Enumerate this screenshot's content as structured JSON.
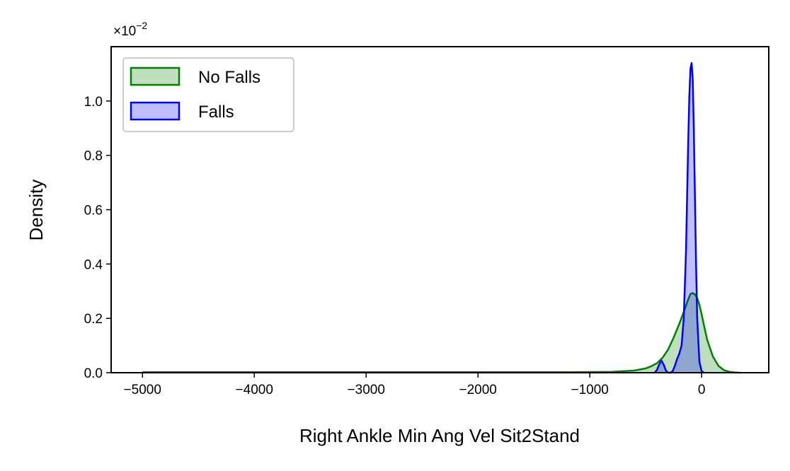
{
  "chart_data": {
    "type": "area",
    "title": "",
    "xlabel": "Right Ankle Min Ang Vel Sit2Stand",
    "ylabel": "Density",
    "y_offset_text": "×10",
    "y_offset_exponent": "−2",
    "xlim": [
      -5280,
      600
    ],
    "ylim": [
      0,
      1.2
    ],
    "xticks": [
      -5000,
      -4000,
      -3000,
      -2000,
      -1000,
      0
    ],
    "xtick_labels": [
      "−5000",
      "−4000",
      "−3000",
      "−2000",
      "−1000",
      "0"
    ],
    "yticks": [
      0.0,
      0.2,
      0.4,
      0.6,
      0.8,
      1.0
    ],
    "ytick_labels": [
      "0.0",
      "0.2",
      "0.4",
      "0.6",
      "0.8",
      "1.0"
    ],
    "legend_position": "upper-left",
    "grid": false,
    "series": [
      {
        "name": "No Falls",
        "line_color": "#008000",
        "fill_color": "#008000",
        "x": [
          -5000,
          -4000,
          -3000,
          -2000,
          -1200,
          -800,
          -600,
          -500,
          -450,
          -400,
          -350,
          -300,
          -250,
          -200,
          -150,
          -120,
          -100,
          -80,
          -60,
          -40,
          -20,
          0,
          20,
          50,
          100,
          150,
          200,
          250,
          300,
          340
        ],
        "y": [
          0.002,
          0.002,
          0.002,
          0.002,
          0.002,
          0.003,
          0.008,
          0.016,
          0.024,
          0.035,
          0.055,
          0.085,
          0.13,
          0.18,
          0.235,
          0.27,
          0.29,
          0.293,
          0.288,
          0.275,
          0.25,
          0.215,
          0.175,
          0.12,
          0.06,
          0.025,
          0.009,
          0.003,
          0.001,
          0.0
        ]
      },
      {
        "name": "Falls",
        "line_color": "#0000ff",
        "fill_color": "#0000ff",
        "x": [
          -420,
          -400,
          -380,
          -360,
          -340,
          -320,
          -300,
          -280,
          -260,
          -240,
          -220,
          -200,
          -180,
          -160,
          -140,
          -120,
          -110,
          -100,
          -90,
          -80,
          -70,
          -60,
          -50,
          -40,
          -20,
          0,
          20
        ],
        "y": [
          0.0,
          0.01,
          0.03,
          0.045,
          0.03,
          0.008,
          0.0,
          0.0,
          0.005,
          0.025,
          0.05,
          0.07,
          0.1,
          0.2,
          0.45,
          0.85,
          1.02,
          1.12,
          1.14,
          1.08,
          0.9,
          0.65,
          0.4,
          0.2,
          0.04,
          0.005,
          0.0
        ]
      }
    ]
  }
}
